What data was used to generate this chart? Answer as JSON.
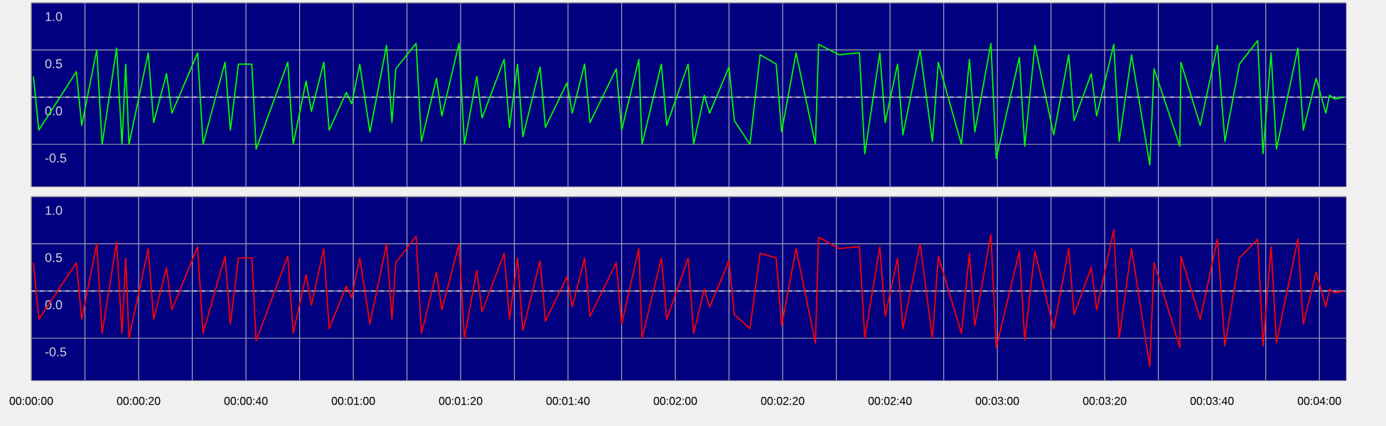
{
  "chart_data": [
    {
      "type": "line",
      "xlim": [
        0,
        245
      ],
      "ylim": [
        -0.95,
        1.0
      ],
      "grid": true,
      "tick_labels": "y",
      "line_style": "solid",
      "xticks": [
        {
          "value": 0,
          "label": null
        },
        {
          "value": 10,
          "label": null
        },
        {
          "value": 20,
          "label": null
        },
        {
          "value": 30,
          "label": null
        },
        {
          "value": 40,
          "label": null
        },
        {
          "value": 50,
          "label": null
        },
        {
          "value": 60,
          "label": null
        },
        {
          "value": 70,
          "label": null
        },
        {
          "value": 80,
          "label": null
        },
        {
          "value": 90,
          "label": null
        },
        {
          "value": 100,
          "label": null
        },
        {
          "value": 110,
          "label": null
        },
        {
          "value": 120,
          "label": null
        },
        {
          "value": 130,
          "label": null
        },
        {
          "value": 140,
          "label": null
        },
        {
          "value": 150,
          "label": null
        },
        {
          "value": 160,
          "label": null
        },
        {
          "value": 170,
          "label": null
        },
        {
          "value": 180,
          "label": null
        },
        {
          "value": 190,
          "label": null
        },
        {
          "value": 200,
          "label": null
        },
        {
          "value": 210,
          "label": null
        },
        {
          "value": 220,
          "label": null
        },
        {
          "value": 230,
          "label": null
        },
        {
          "value": 240,
          "label": null
        }
      ],
      "yticks": [
        {
          "value": 1.0,
          "label": "1.0"
        },
        {
          "value": 0.5,
          "label": "0.5"
        },
        {
          "value": 0,
          "label": "0.0"
        },
        {
          "value": -0.5,
          "label": "-0.5"
        }
      ],
      "ref_lines": [
        {
          "axis": "y",
          "value": 0,
          "color": "#d0d0d0",
          "line_style": "dashed"
        }
      ],
      "series": [
        {
          "color": "#00ff00",
          "x": [
            0.4,
            1.4,
            8.4,
            9.4,
            12.2,
            13.2,
            15.9,
            16.9,
            17.6,
            18.2,
            21.8,
            22.8,
            25.2,
            26.2,
            31.0,
            32.0,
            36.1,
            37.1,
            38.6,
            41.1,
            41.9,
            47.8,
            48.8,
            51.2,
            52.2,
            54.5,
            55.5,
            58.7,
            59.7,
            61.2,
            63.1,
            66.2,
            67.2,
            67.9,
            71.7,
            72.7,
            75.5,
            76.5,
            79.7,
            80.7,
            83.0,
            84.0,
            88.1,
            89.1,
            90.6,
            91.6,
            94.8,
            95.8,
            99.8,
            100.8,
            103.1,
            104.1,
            109.0,
            110.0,
            113.2,
            113.8,
            117.4,
            118.4,
            122.4,
            123.4,
            125.4,
            126.4,
            130.0,
            131.0,
            133.9,
            135.8,
            138.8,
            139.8,
            142.5,
            146.1,
            146.7,
            150.5,
            154.3,
            155.3,
            158.1,
            159.1,
            161.4,
            162.4,
            165.6,
            167.9,
            169.0,
            173.3,
            174.8,
            175.8,
            178.8,
            179.8,
            184.1,
            185.1,
            187.0,
            190.5,
            193.3,
            194.3,
            197.5,
            198.5,
            201.7,
            202.7,
            205.0,
            208.4,
            209.2,
            214.0,
            214.2,
            217.8,
            221.0,
            222.4,
            225.1,
            228.5,
            229.5,
            231.0,
            232.0,
            236.0,
            237.0,
            239.4,
            241.2,
            241.9,
            242.9,
            244.5
          ],
          "values": [
            0.22,
            -0.35,
            0.27,
            -0.3,
            0.5,
            -0.5,
            0.52,
            -0.5,
            0.35,
            -0.5,
            0.47,
            -0.27,
            0.25,
            -0.17,
            0.47,
            -0.5,
            0.37,
            -0.35,
            0.35,
            0.35,
            -0.55,
            0.37,
            -0.5,
            0.17,
            -0.15,
            0.37,
            -0.35,
            0.05,
            -0.07,
            0.35,
            -0.37,
            0.55,
            -0.27,
            0.3,
            0.57,
            -0.47,
            0.2,
            -0.2,
            0.57,
            -0.5,
            0.22,
            -0.22,
            0.4,
            -0.32,
            0.35,
            -0.42,
            0.32,
            -0.32,
            0.15,
            -0.17,
            0.35,
            -0.27,
            0.3,
            -0.35,
            0.4,
            -0.5,
            0.35,
            -0.3,
            0.35,
            -0.5,
            0.02,
            -0.17,
            0.32,
            -0.25,
            -0.5,
            0.45,
            0.35,
            -0.37,
            0.47,
            -0.5,
            0.56,
            0.45,
            0.47,
            -0.6,
            0.47,
            -0.27,
            0.35,
            -0.4,
            0.5,
            -0.47,
            0.37,
            -0.5,
            0.4,
            -0.37,
            0.57,
            -0.65,
            0.42,
            -0.52,
            0.55,
            -0.4,
            0.45,
            -0.25,
            0.25,
            -0.2,
            0.56,
            -0.47,
            0.45,
            -0.72,
            0.3,
            -0.52,
            0.37,
            -0.3,
            0.55,
            -0.47,
            0.35,
            0.6,
            -0.6,
            0.47,
            -0.55,
            0.52,
            -0.35,
            0.2,
            -0.17,
            0.02,
            -0.02,
            0.0
          ]
        }
      ]
    },
    {
      "type": "line",
      "xlim": [
        0,
        245
      ],
      "ylim": [
        -0.95,
        1.0
      ],
      "grid": true,
      "line_style": "solid",
      "xticks": [
        {
          "value": 0,
          "label": "00:00:00"
        },
        {
          "value": 10,
          "label": null
        },
        {
          "value": 20,
          "label": "00:00:20"
        },
        {
          "value": 30,
          "label": null
        },
        {
          "value": 40,
          "label": "00:00:40"
        },
        {
          "value": 50,
          "label": null
        },
        {
          "value": 60,
          "label": "00:01:00"
        },
        {
          "value": 70,
          "label": null
        },
        {
          "value": 80,
          "label": "00:01:20"
        },
        {
          "value": 90,
          "label": null
        },
        {
          "value": 100,
          "label": "00:01:40"
        },
        {
          "value": 110,
          "label": null
        },
        {
          "value": 120,
          "label": "00:02:00"
        },
        {
          "value": 130,
          "label": null
        },
        {
          "value": 140,
          "label": "00:02:20"
        },
        {
          "value": 150,
          "label": null
        },
        {
          "value": 160,
          "label": "00:02:40"
        },
        {
          "value": 170,
          "label": null
        },
        {
          "value": 180,
          "label": "00:03:00"
        },
        {
          "value": 190,
          "label": null
        },
        {
          "value": 200,
          "label": "00:03:20"
        },
        {
          "value": 210,
          "label": null
        },
        {
          "value": 220,
          "label": "00:03:40"
        },
        {
          "value": 230,
          "label": null
        },
        {
          "value": 240,
          "label": "00:04:00"
        }
      ],
      "yticks": [
        {
          "value": 1.0,
          "label": "1.0"
        },
        {
          "value": 0.5,
          "label": "0.5"
        },
        {
          "value": 0,
          "label": "0.0"
        },
        {
          "value": -0.5,
          "label": "-0.5"
        }
      ],
      "ref_lines": [
        {
          "axis": "y",
          "value": 0,
          "color": "#d0d0d0",
          "line_style": "dashed"
        }
      ],
      "series": [
        {
          "color": "#ff0000",
          "x": [
            0.4,
            1.4,
            8.4,
            9.4,
            12.2,
            13.2,
            15.9,
            16.9,
            17.6,
            18.2,
            21.8,
            22.8,
            25.2,
            26.2,
            31.0,
            32.0,
            36.1,
            37.1,
            38.6,
            41.1,
            41.9,
            47.8,
            48.8,
            51.2,
            52.2,
            54.5,
            55.5,
            58.7,
            59.7,
            61.2,
            63.1,
            66.2,
            67.2,
            67.9,
            71.7,
            72.7,
            75.5,
            76.5,
            79.7,
            80.7,
            83.0,
            84.0,
            88.1,
            89.1,
            90.6,
            91.6,
            94.8,
            95.8,
            99.8,
            100.8,
            103.1,
            104.1,
            109.0,
            110.0,
            113.2,
            113.8,
            117.4,
            118.4,
            122.4,
            123.4,
            125.4,
            126.4,
            130.0,
            131.0,
            133.9,
            135.8,
            138.8,
            139.8,
            142.5,
            146.1,
            146.7,
            150.5,
            154.3,
            155.3,
            158.1,
            159.1,
            161.4,
            162.4,
            165.6,
            167.9,
            169.0,
            173.3,
            174.8,
            175.8,
            178.8,
            179.8,
            184.1,
            185.1,
            187.0,
            190.5,
            193.3,
            194.3,
            197.5,
            198.5,
            201.7,
            202.7,
            205.0,
            208.4,
            209.2,
            214.0,
            214.2,
            217.8,
            221.0,
            222.4,
            225.1,
            228.5,
            229.5,
            231.0,
            232.0,
            236.0,
            237.0,
            239.4,
            241.2,
            241.9,
            242.9,
            244.5
          ],
          "values": [
            0.3,
            -0.3,
            0.3,
            -0.3,
            0.5,
            -0.45,
            0.52,
            -0.45,
            0.35,
            -0.5,
            0.45,
            -0.3,
            0.25,
            -0.2,
            0.47,
            -0.45,
            0.37,
            -0.35,
            0.35,
            0.35,
            -0.53,
            0.37,
            -0.45,
            0.17,
            -0.15,
            0.45,
            -0.4,
            0.05,
            -0.07,
            0.35,
            -0.35,
            0.5,
            -0.3,
            0.3,
            0.58,
            -0.45,
            0.2,
            -0.2,
            0.5,
            -0.5,
            0.22,
            -0.22,
            0.4,
            -0.3,
            0.35,
            -0.42,
            0.32,
            -0.32,
            0.15,
            -0.17,
            0.35,
            -0.27,
            0.3,
            -0.35,
            0.45,
            -0.5,
            0.35,
            -0.3,
            0.35,
            -0.45,
            0.02,
            -0.17,
            0.32,
            -0.25,
            -0.4,
            0.4,
            0.35,
            -0.37,
            0.45,
            -0.55,
            0.57,
            0.45,
            0.47,
            -0.5,
            0.47,
            -0.27,
            0.35,
            -0.4,
            0.5,
            -0.5,
            0.37,
            -0.45,
            0.4,
            -0.37,
            0.6,
            -0.6,
            0.42,
            -0.52,
            0.42,
            -0.4,
            0.45,
            -0.25,
            0.25,
            -0.2,
            0.65,
            -0.5,
            0.45,
            -0.8,
            0.3,
            -0.6,
            0.37,
            -0.3,
            0.55,
            -0.58,
            0.35,
            0.55,
            -0.58,
            0.47,
            -0.55,
            0.55,
            -0.35,
            0.2,
            -0.17,
            0.02,
            -0.02,
            0.0
          ]
        }
      ]
    }
  ]
}
